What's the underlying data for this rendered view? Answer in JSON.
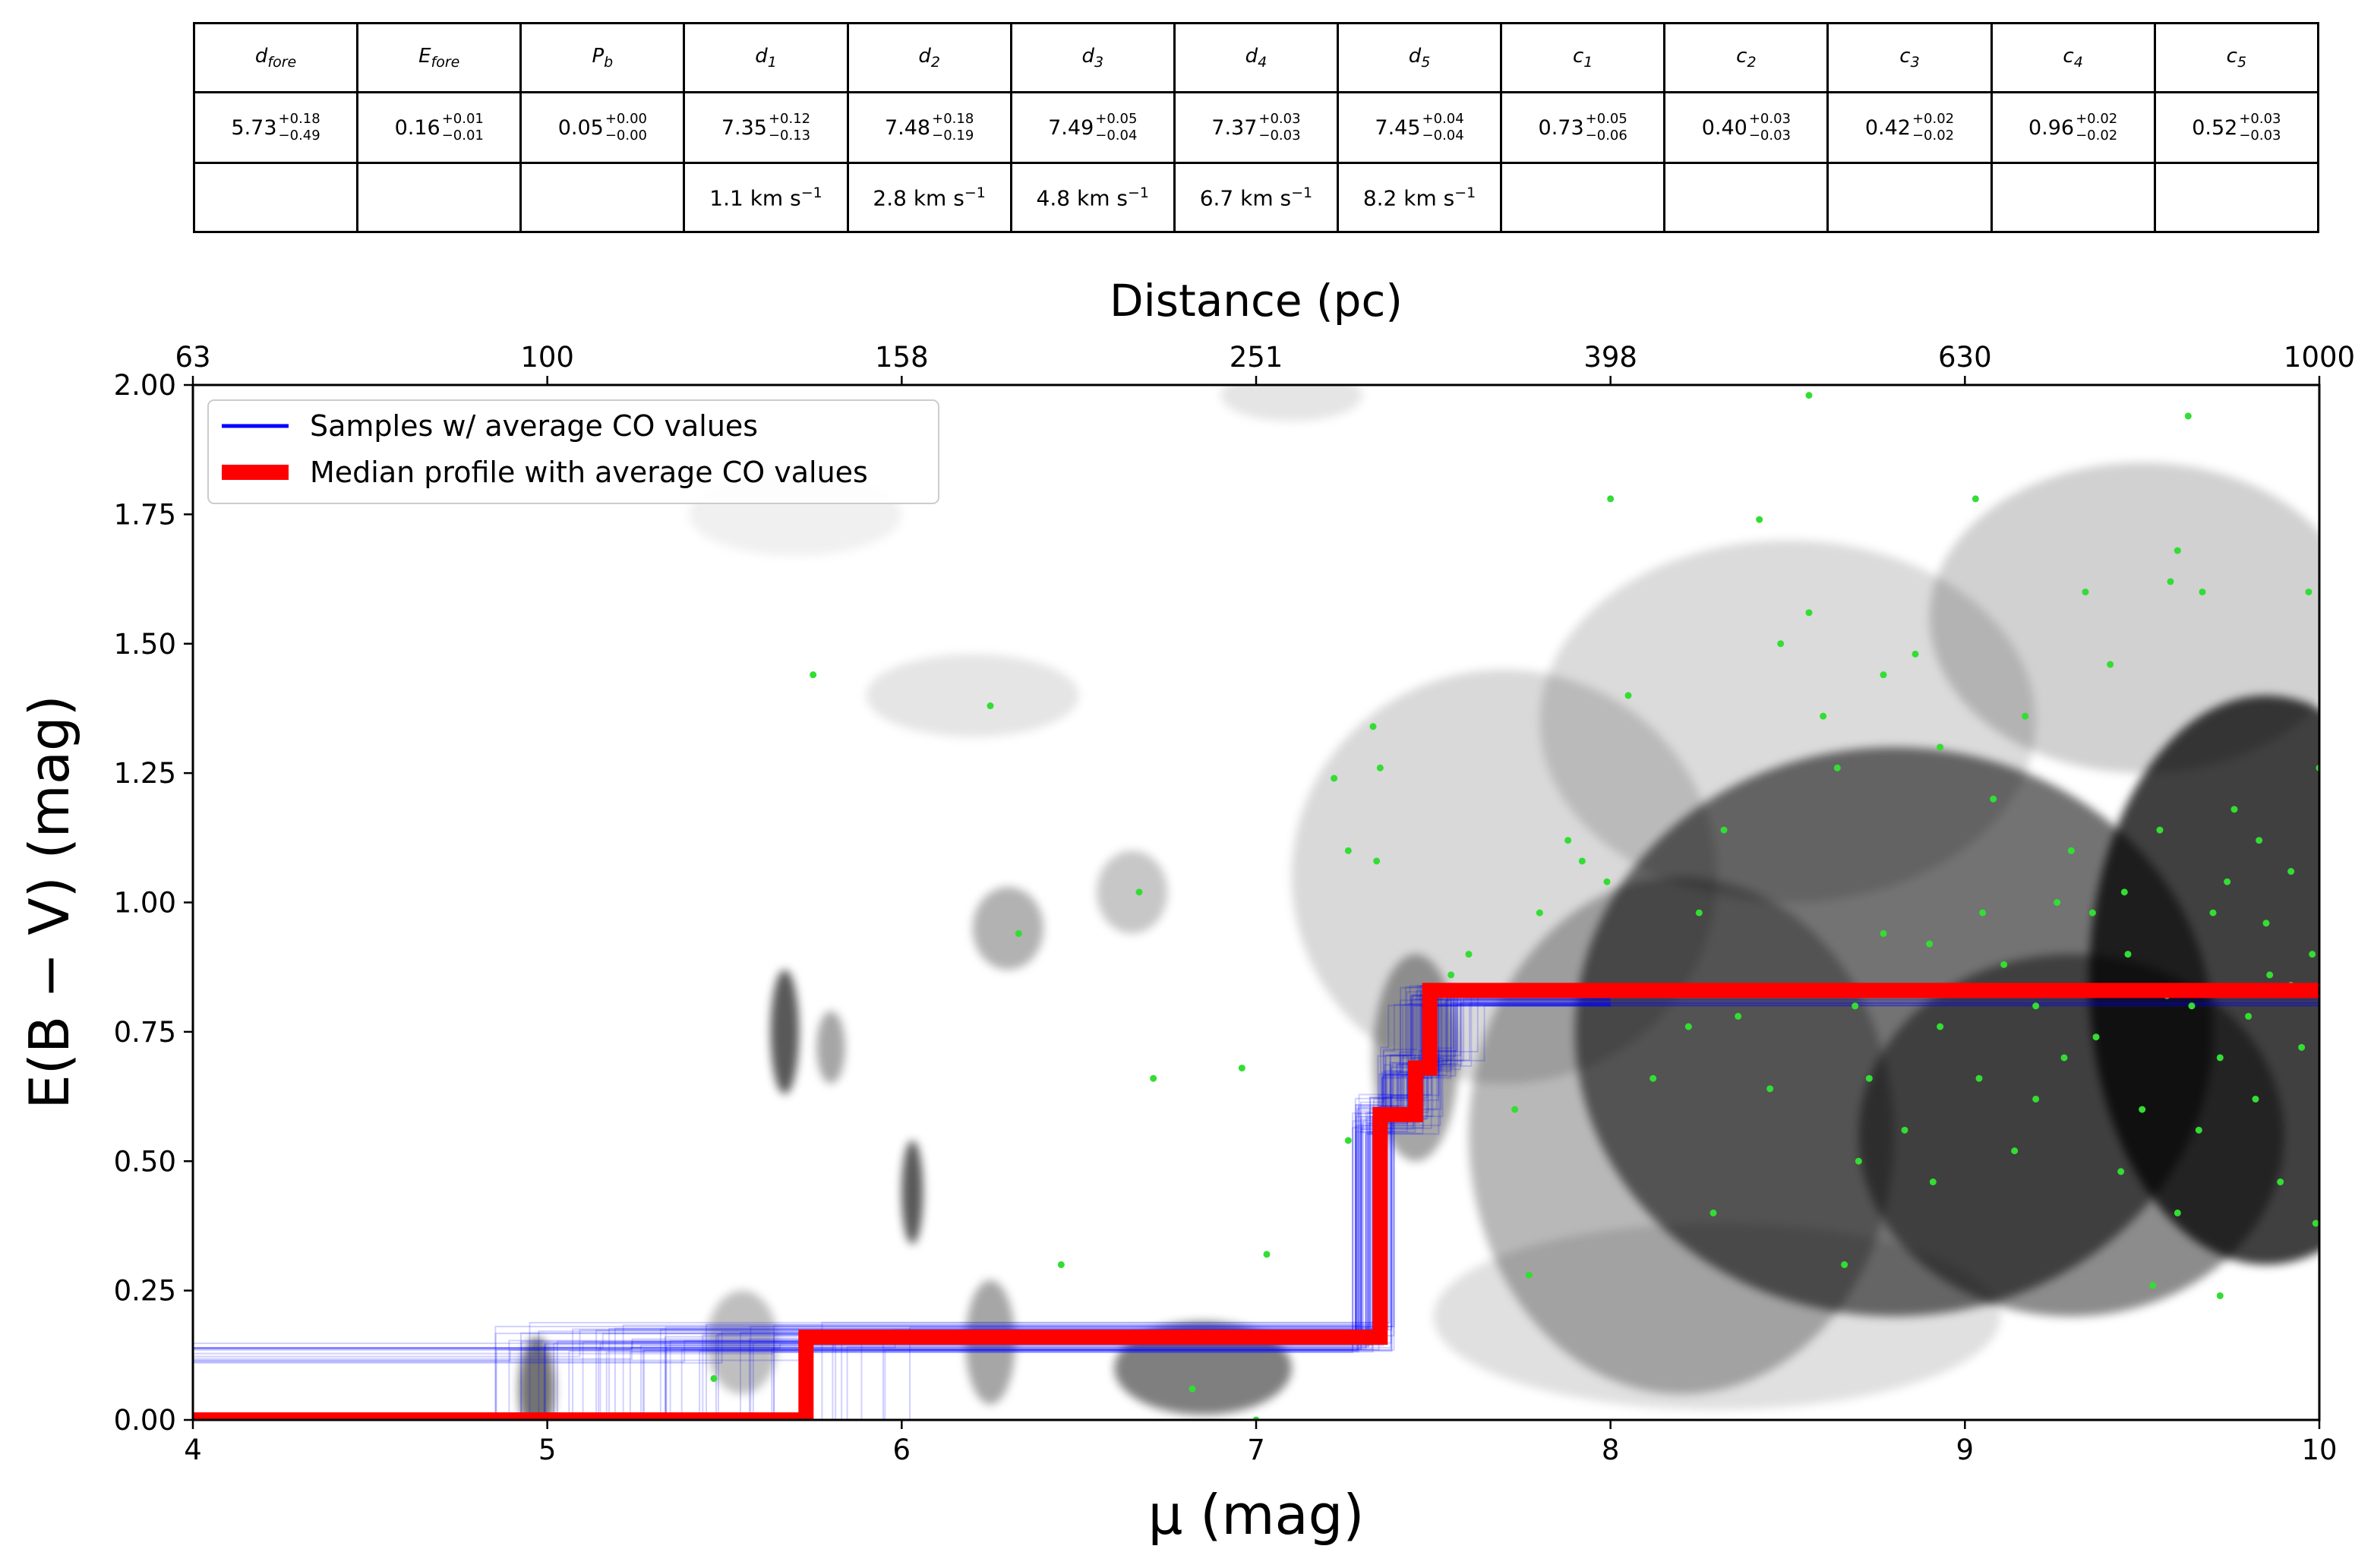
{
  "table": {
    "headers": [
      {
        "sym": "d",
        "sub": "fore"
      },
      {
        "sym": "E",
        "sub": "fore"
      },
      {
        "sym": "P",
        "sub": "b"
      },
      {
        "sym": "d",
        "sub": "1"
      },
      {
        "sym": "d",
        "sub": "2"
      },
      {
        "sym": "d",
        "sub": "3"
      },
      {
        "sym": "d",
        "sub": "4"
      },
      {
        "sym": "d",
        "sub": "5"
      },
      {
        "sym": "c",
        "sub": "1"
      },
      {
        "sym": "c",
        "sub": "2"
      },
      {
        "sym": "c",
        "sub": "3"
      },
      {
        "sym": "c",
        "sub": "4"
      },
      {
        "sym": "c",
        "sub": "5"
      }
    ],
    "values": [
      {
        "v": "5.73",
        "up": "+0.18",
        "lo": "−0.49"
      },
      {
        "v": "0.16",
        "up": "+0.01",
        "lo": "−0.01"
      },
      {
        "v": "0.05",
        "up": "+0.00",
        "lo": "−0.00"
      },
      {
        "v": "7.35",
        "up": "+0.12",
        "lo": "−0.13"
      },
      {
        "v": "7.48",
        "up": "+0.18",
        "lo": "−0.19"
      },
      {
        "v": "7.49",
        "up": "+0.05",
        "lo": "−0.04"
      },
      {
        "v": "7.37",
        "up": "+0.03",
        "lo": "−0.03"
      },
      {
        "v": "7.45",
        "up": "+0.04",
        "lo": "−0.04"
      },
      {
        "v": "0.73",
        "up": "+0.05",
        "lo": "−0.06"
      },
      {
        "v": "0.40",
        "up": "+0.03",
        "lo": "−0.03"
      },
      {
        "v": "0.42",
        "up": "+0.02",
        "lo": "−0.02"
      },
      {
        "v": "0.96",
        "up": "+0.02",
        "lo": "−0.02"
      },
      {
        "v": "0.52",
        "up": "+0.03",
        "lo": "−0.03"
      }
    ],
    "velocities": [
      "",
      "",
      "",
      "1.1 km s",
      "2.8 km s",
      "4.8 km s",
      "6.7 km s",
      "8.2 km s",
      "",
      "",
      "",
      "",
      ""
    ],
    "velocity_exp": "−1"
  },
  "chart_data": {
    "type": "line",
    "xlabel": "μ (mag)",
    "ylabel": "E(B − V) (mag)",
    "top_xlabel": "Distance (pc)",
    "xlim": [
      4,
      10
    ],
    "ylim": [
      0,
      2
    ],
    "x_ticks": [
      4,
      5,
      6,
      7,
      8,
      9,
      10
    ],
    "y_ticks": [
      "0.00",
      "0.25",
      "0.50",
      "0.75",
      "1.00",
      "1.25",
      "1.50",
      "1.75",
      "2.00"
    ],
    "top_ticks": [
      {
        "mu": 4,
        "label": "63"
      },
      {
        "mu": 5,
        "label": "100"
      },
      {
        "mu": 6,
        "label": "158"
      },
      {
        "mu": 7,
        "label": "251"
      },
      {
        "mu": 8,
        "label": "398"
      },
      {
        "mu": 9,
        "label": "630"
      },
      {
        "mu": 10,
        "label": "1000"
      }
    ],
    "legend_position": "upper-left",
    "grid": false,
    "series": [
      {
        "name": "Samples  w/ average CO values",
        "color": "#0000ff",
        "representative_steps": [
          [
            4.0,
            0.0
          ],
          [
            5.73,
            0.16
          ],
          [
            7.35,
            0.59
          ],
          [
            7.45,
            0.68
          ],
          [
            7.49,
            0.83
          ],
          [
            10.0,
            0.83
          ]
        ]
      },
      {
        "name": "Median profile with average CO values",
        "color": "#ff0000",
        "steps": [
          [
            4.0,
            0.0
          ],
          [
            5.73,
            0.0
          ],
          [
            5.73,
            0.16
          ],
          [
            7.35,
            0.16
          ],
          [
            7.35,
            0.59
          ],
          [
            7.45,
            0.59
          ],
          [
            7.45,
            0.68
          ],
          [
            7.49,
            0.68
          ],
          [
            7.49,
            0.83
          ],
          [
            10.0,
            0.83
          ]
        ]
      }
    ],
    "stars": {
      "color": "#33dd33",
      "points": [
        [
          5.75,
          1.44
        ],
        [
          6.25,
          1.38
        ],
        [
          6.33,
          0.94
        ],
        [
          6.67,
          1.02
        ],
        [
          6.71,
          0.66
        ],
        [
          6.96,
          0.68
        ],
        [
          7.22,
          1.24
        ],
        [
          7.26,
          1.1
        ],
        [
          7.34,
          1.08
        ],
        [
          7.33,
          1.34
        ],
        [
          7.35,
          1.26
        ],
        [
          7.26,
          0.54
        ],
        [
          7.55,
          0.86
        ],
        [
          7.6,
          0.9
        ],
        [
          7.73,
          0.6
        ],
        [
          7.77,
          0.28
        ],
        [
          7.8,
          0.98
        ],
        [
          7.88,
          1.12
        ],
        [
          7.92,
          1.08
        ],
        [
          8.0,
          1.78
        ],
        [
          8.05,
          1.4
        ],
        [
          7.99,
          1.04
        ],
        [
          8.12,
          0.66
        ],
        [
          8.22,
          0.76
        ],
        [
          8.25,
          0.98
        ],
        [
          8.29,
          0.4
        ],
        [
          8.32,
          1.14
        ],
        [
          8.36,
          0.78
        ],
        [
          8.42,
          1.74
        ],
        [
          8.45,
          0.64
        ],
        [
          8.48,
          1.5
        ],
        [
          8.56,
          1.98
        ],
        [
          8.56,
          1.56
        ],
        [
          8.6,
          1.36
        ],
        [
          8.64,
          1.26
        ],
        [
          8.69,
          0.8
        ],
        [
          8.7,
          0.5
        ],
        [
          8.77,
          1.44
        ],
        [
          8.66,
          0.3
        ],
        [
          8.83,
          0.56
        ],
        [
          8.86,
          1.48
        ],
        [
          8.9,
          0.92
        ],
        [
          8.93,
          1.3
        ],
        [
          9.03,
          1.78
        ],
        [
          9.04,
          0.66
        ],
        [
          9.08,
          1.2
        ],
        [
          9.11,
          0.88
        ],
        [
          9.17,
          1.36
        ],
        [
          9.2,
          0.8
        ],
        [
          9.28,
          0.7
        ],
        [
          9.3,
          1.1
        ],
        [
          9.34,
          1.6
        ],
        [
          9.37,
          0.74
        ],
        [
          9.41,
          1.46
        ],
        [
          9.46,
          0.9
        ],
        [
          9.5,
          0.6
        ],
        [
          9.55,
          1.14
        ],
        [
          9.57,
          0.82
        ],
        [
          9.6,
          1.68
        ],
        [
          9.63,
          1.94
        ],
        [
          9.58,
          1.62
        ],
        [
          9.67,
          1.6
        ],
        [
          9.7,
          0.98
        ],
        [
          9.72,
          0.24
        ],
        [
          9.76,
          1.18
        ],
        [
          9.8,
          0.78
        ],
        [
          9.83,
          1.12
        ],
        [
          9.86,
          0.86
        ],
        [
          9.89,
          0.46
        ],
        [
          9.92,
          1.06
        ],
        [
          9.95,
          0.72
        ],
        [
          9.97,
          1.6
        ],
        [
          10.0,
          1.26
        ],
        [
          9.99,
          0.38
        ],
        [
          9.98,
          0.9
        ],
        [
          8.91,
          0.46
        ],
        [
          9.14,
          0.52
        ],
        [
          9.44,
          0.48
        ],
        [
          9.53,
          0.26
        ],
        [
          9.26,
          1.0
        ],
        [
          9.05,
          0.98
        ],
        [
          8.77,
          0.94
        ],
        [
          8.93,
          0.76
        ],
        [
          9.64,
          0.8
        ],
        [
          9.72,
          0.7
        ],
        [
          9.85,
          0.96
        ],
        [
          9.92,
          0.84
        ],
        [
          6.45,
          0.3
        ],
        [
          7.03,
          0.32
        ],
        [
          6.62,
          0.16
        ],
        [
          5.47,
          0.08
        ],
        [
          6.82,
          0.06
        ],
        [
          7.0,
          0.0
        ],
        [
          8.73,
          0.66
        ],
        [
          9.2,
          0.62
        ],
        [
          9.45,
          1.02
        ],
        [
          9.74,
          1.04
        ],
        [
          9.36,
          0.98
        ],
        [
          9.82,
          0.62
        ],
        [
          9.66,
          0.56
        ],
        [
          9.6,
          0.4
        ]
      ]
    },
    "density_blobs": [
      {
        "x": 8.8,
        "y": 0.75,
        "sx": 0.9,
        "sy": 0.55,
        "a": 0.55
      },
      {
        "x": 9.85,
        "y": 0.85,
        "sx": 0.5,
        "sy": 0.55,
        "a": 0.75
      },
      {
        "x": 9.3,
        "y": 0.55,
        "sx": 0.6,
        "sy": 0.35,
        "a": 0.45
      },
      {
        "x": 8.2,
        "y": 0.55,
        "sx": 0.6,
        "sy": 0.5,
        "a": 0.28
      },
      {
        "x": 7.7,
        "y": 1.05,
        "sx": 0.6,
        "sy": 0.4,
        "a": 0.15
      },
      {
        "x": 8.5,
        "y": 1.35,
        "sx": 0.7,
        "sy": 0.35,
        "a": 0.14
      },
      {
        "x": 9.5,
        "y": 1.55,
        "sx": 0.6,
        "sy": 0.3,
        "a": 0.18
      },
      {
        "x": 8.3,
        "y": 0.2,
        "sx": 0.8,
        "sy": 0.18,
        "a": 0.12
      },
      {
        "x": 6.85,
        "y": 0.1,
        "sx": 0.25,
        "sy": 0.09,
        "a": 0.5
      },
      {
        "x": 6.25,
        "y": 0.15,
        "sx": 0.07,
        "sy": 0.12,
        "a": 0.35
      },
      {
        "x": 5.55,
        "y": 0.15,
        "sx": 0.1,
        "sy": 0.1,
        "a": 0.25
      },
      {
        "x": 4.97,
        "y": 0.06,
        "sx": 0.05,
        "sy": 0.1,
        "a": 0.55
      },
      {
        "x": 5.67,
        "y": 0.75,
        "sx": 0.04,
        "sy": 0.12,
        "a": 0.65
      },
      {
        "x": 5.8,
        "y": 0.72,
        "sx": 0.04,
        "sy": 0.07,
        "a": 0.35
      },
      {
        "x": 6.03,
        "y": 0.44,
        "sx": 0.03,
        "sy": 0.1,
        "a": 0.65
      },
      {
        "x": 6.3,
        "y": 0.95,
        "sx": 0.1,
        "sy": 0.08,
        "a": 0.3
      },
      {
        "x": 6.65,
        "y": 1.02,
        "sx": 0.1,
        "sy": 0.08,
        "a": 0.22
      },
      {
        "x": 6.2,
        "y": 1.4,
        "sx": 0.3,
        "sy": 0.08,
        "a": 0.1
      },
      {
        "x": 5.7,
        "y": 1.75,
        "sx": 0.3,
        "sy": 0.08,
        "a": 0.06
      },
      {
        "x": 7.1,
        "y": 1.98,
        "sx": 0.2,
        "sy": 0.05,
        "a": 0.1
      },
      {
        "x": 7.45,
        "y": 0.7,
        "sx": 0.12,
        "sy": 0.2,
        "a": 0.35
      }
    ]
  }
}
